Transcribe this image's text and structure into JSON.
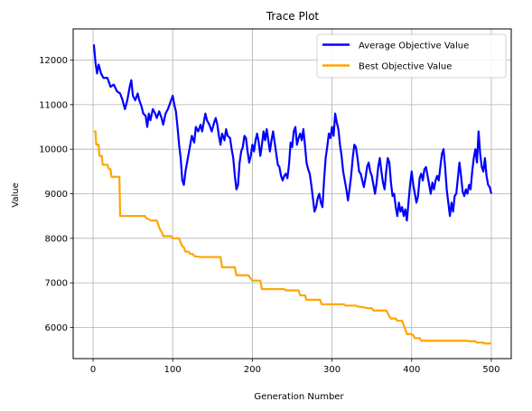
{
  "chart_data": {
    "type": "line",
    "title": "Trace Plot",
    "xlabel": "Generation Number",
    "ylabel": "Value",
    "xlim": [
      -25,
      525
    ],
    "ylim": [
      5300,
      12700
    ],
    "xticks": [
      0,
      100,
      200,
      300,
      400,
      500
    ],
    "yticks": [
      6000,
      7000,
      8000,
      9000,
      10000,
      11000,
      12000
    ],
    "grid": true,
    "legend": "top-right",
    "series": [
      {
        "name": "Average Objective Value",
        "color": "#0000ff",
        "points": [
          [
            1,
            12350
          ],
          [
            3,
            11950
          ],
          [
            5,
            11700
          ],
          [
            7,
            11900
          ],
          [
            10,
            11700
          ],
          [
            13,
            11600
          ],
          [
            18,
            11600
          ],
          [
            22,
            11400
          ],
          [
            26,
            11450
          ],
          [
            30,
            11300
          ],
          [
            34,
            11250
          ],
          [
            37,
            11100
          ],
          [
            40,
            10900
          ],
          [
            43,
            11100
          ],
          [
            46,
            11400
          ],
          [
            48,
            11550
          ],
          [
            50,
            11200
          ],
          [
            53,
            11100
          ],
          [
            56,
            11250
          ],
          [
            58,
            11100
          ],
          [
            61,
            10950
          ],
          [
            63,
            10800
          ],
          [
            66,
            10750
          ],
          [
            68,
            10500
          ],
          [
            70,
            10800
          ],
          [
            72,
            10650
          ],
          [
            75,
            10900
          ],
          [
            78,
            10800
          ],
          [
            80,
            10700
          ],
          [
            83,
            10850
          ],
          [
            86,
            10700
          ],
          [
            88,
            10550
          ],
          [
            91,
            10800
          ],
          [
            94,
            10900
          ],
          [
            97,
            11050
          ],
          [
            100,
            11200
          ],
          [
            102,
            11000
          ],
          [
            104,
            10850
          ],
          [
            106,
            10500
          ],
          [
            108,
            10100
          ],
          [
            110,
            9800
          ],
          [
            112,
            9300
          ],
          [
            114,
            9200
          ],
          [
            116,
            9500
          ],
          [
            118,
            9700
          ],
          [
            120,
            9900
          ],
          [
            122,
            10100
          ],
          [
            124,
            10300
          ],
          [
            127,
            10150
          ],
          [
            129,
            10500
          ],
          [
            132,
            10400
          ],
          [
            135,
            10550
          ],
          [
            137,
            10400
          ],
          [
            139,
            10600
          ],
          [
            141,
            10800
          ],
          [
            143,
            10650
          ],
          [
            146,
            10550
          ],
          [
            149,
            10400
          ],
          [
            152,
            10600
          ],
          [
            154,
            10700
          ],
          [
            156,
            10550
          ],
          [
            158,
            10300
          ],
          [
            160,
            10100
          ],
          [
            162,
            10350
          ],
          [
            165,
            10200
          ],
          [
            167,
            10450
          ],
          [
            169,
            10300
          ],
          [
            172,
            10250
          ],
          [
            174,
            10000
          ],
          [
            176,
            9800
          ],
          [
            178,
            9400
          ],
          [
            180,
            9100
          ],
          [
            182,
            9200
          ],
          [
            184,
            9700
          ],
          [
            186,
            9950
          ],
          [
            188,
            10050
          ],
          [
            190,
            10300
          ],
          [
            192,
            10250
          ],
          [
            194,
            9950
          ],
          [
            196,
            9700
          ],
          [
            198,
            9850
          ],
          [
            200,
            10100
          ],
          [
            202,
            9950
          ],
          [
            204,
            10200
          ],
          [
            206,
            10350
          ],
          [
            208,
            10150
          ],
          [
            210,
            9850
          ],
          [
            212,
            10100
          ],
          [
            214,
            10400
          ],
          [
            216,
            10200
          ],
          [
            218,
            10450
          ],
          [
            220,
            10200
          ],
          [
            222,
            9950
          ],
          [
            224,
            10200
          ],
          [
            226,
            10400
          ],
          [
            228,
            10150
          ],
          [
            230,
            9900
          ],
          [
            232,
            9650
          ],
          [
            234,
            9600
          ],
          [
            236,
            9400
          ],
          [
            238,
            9300
          ],
          [
            240,
            9400
          ],
          [
            242,
            9450
          ],
          [
            244,
            9350
          ],
          [
            246,
            9650
          ],
          [
            248,
            10150
          ],
          [
            250,
            10050
          ],
          [
            252,
            10400
          ],
          [
            254,
            10500
          ],
          [
            256,
            10100
          ],
          [
            258,
            10250
          ],
          [
            260,
            10350
          ],
          [
            262,
            10200
          ],
          [
            264,
            10450
          ],
          [
            266,
            10100
          ],
          [
            268,
            9700
          ],
          [
            270,
            9550
          ],
          [
            272,
            9450
          ],
          [
            274,
            9200
          ],
          [
            276,
            8900
          ],
          [
            278,
            8600
          ],
          [
            280,
            8700
          ],
          [
            282,
            8900
          ],
          [
            284,
            9000
          ],
          [
            286,
            8800
          ],
          [
            288,
            8700
          ],
          [
            290,
            9300
          ],
          [
            292,
            9800
          ],
          [
            294,
            10050
          ],
          [
            296,
            10350
          ],
          [
            298,
            10250
          ],
          [
            300,
            10500
          ],
          [
            302,
            10300
          ],
          [
            304,
            10800
          ],
          [
            306,
            10600
          ],
          [
            308,
            10450
          ],
          [
            310,
            10100
          ],
          [
            312,
            9850
          ],
          [
            314,
            9500
          ],
          [
            316,
            9300
          ],
          [
            318,
            9100
          ],
          [
            320,
            8850
          ],
          [
            322,
            9100
          ],
          [
            324,
            9400
          ],
          [
            326,
            9800
          ],
          [
            328,
            10100
          ],
          [
            330,
            10050
          ],
          [
            332,
            9800
          ],
          [
            334,
            9500
          ],
          [
            336,
            9450
          ],
          [
            338,
            9300
          ],
          [
            340,
            9150
          ],
          [
            342,
            9350
          ],
          [
            344,
            9600
          ],
          [
            346,
            9700
          ],
          [
            348,
            9500
          ],
          [
            350,
            9400
          ],
          [
            352,
            9200
          ],
          [
            354,
            9000
          ],
          [
            356,
            9250
          ],
          [
            358,
            9600
          ],
          [
            360,
            9800
          ],
          [
            362,
            9500
          ],
          [
            364,
            9250
          ],
          [
            366,
            9100
          ],
          [
            368,
            9500
          ],
          [
            370,
            9800
          ],
          [
            372,
            9700
          ],
          [
            374,
            9250
          ],
          [
            376,
            8950
          ],
          [
            378,
            9000
          ],
          [
            380,
            8700
          ],
          [
            382,
            8500
          ],
          [
            384,
            8800
          ],
          [
            386,
            8600
          ],
          [
            388,
            8700
          ],
          [
            390,
            8500
          ],
          [
            392,
            8650
          ],
          [
            394,
            8400
          ],
          [
            396,
            8800
          ],
          [
            398,
            9200
          ],
          [
            400,
            9500
          ],
          [
            402,
            9200
          ],
          [
            404,
            9000
          ],
          [
            406,
            8800
          ],
          [
            408,
            8950
          ],
          [
            410,
            9350
          ],
          [
            412,
            9450
          ],
          [
            414,
            9300
          ],
          [
            416,
            9550
          ],
          [
            418,
            9600
          ],
          [
            420,
            9400
          ],
          [
            422,
            9200
          ],
          [
            424,
            9000
          ],
          [
            426,
            9250
          ],
          [
            428,
            9100
          ],
          [
            430,
            9300
          ],
          [
            432,
            9400
          ],
          [
            434,
            9300
          ],
          [
            436,
            9600
          ],
          [
            438,
            9900
          ],
          [
            440,
            10000
          ],
          [
            442,
            9600
          ],
          [
            444,
            9100
          ],
          [
            446,
            8800
          ],
          [
            448,
            8500
          ],
          [
            450,
            8800
          ],
          [
            452,
            8600
          ],
          [
            454,
            8950
          ],
          [
            456,
            9000
          ],
          [
            458,
            9350
          ],
          [
            460,
            9700
          ],
          [
            462,
            9400
          ],
          [
            464,
            9050
          ],
          [
            466,
            8950
          ],
          [
            468,
            9100
          ],
          [
            470,
            9000
          ],
          [
            472,
            9200
          ],
          [
            474,
            9100
          ],
          [
            476,
            9500
          ],
          [
            478,
            9800
          ],
          [
            480,
            10000
          ],
          [
            482,
            9700
          ],
          [
            484,
            10400
          ],
          [
            486,
            9900
          ],
          [
            488,
            9600
          ],
          [
            490,
            9500
          ],
          [
            492,
            9800
          ],
          [
            494,
            9400
          ],
          [
            496,
            9200
          ],
          [
            498,
            9150
          ],
          [
            500,
            9000
          ]
        ]
      },
      {
        "name": "Best Objective Value",
        "color": "#ffa500",
        "points": [
          [
            1,
            10400
          ],
          [
            3,
            10400
          ],
          [
            4,
            10100
          ],
          [
            7,
            10100
          ],
          [
            8,
            9850
          ],
          [
            11,
            9850
          ],
          [
            12,
            9650
          ],
          [
            18,
            9650
          ],
          [
            20,
            9550
          ],
          [
            22,
            9550
          ],
          [
            23,
            9380
          ],
          [
            33,
            9380
          ],
          [
            34,
            8500
          ],
          [
            65,
            8500
          ],
          [
            67,
            8450
          ],
          [
            70,
            8430
          ],
          [
            72,
            8400
          ],
          [
            80,
            8400
          ],
          [
            82,
            8300
          ],
          [
            84,
            8200
          ],
          [
            86,
            8150
          ],
          [
            88,
            8050
          ],
          [
            98,
            8050
          ],
          [
            100,
            8000
          ],
          [
            108,
            8000
          ],
          [
            110,
            7900
          ],
          [
            112,
            7820
          ],
          [
            114,
            7800
          ],
          [
            116,
            7700
          ],
          [
            120,
            7700
          ],
          [
            122,
            7650
          ],
          [
            125,
            7650
          ],
          [
            127,
            7600
          ],
          [
            135,
            7580
          ],
          [
            160,
            7580
          ],
          [
            162,
            7350
          ],
          [
            178,
            7350
          ],
          [
            180,
            7170
          ],
          [
            195,
            7170
          ],
          [
            197,
            7120
          ],
          [
            200,
            7050
          ],
          [
            210,
            7050
          ],
          [
            212,
            6860
          ],
          [
            240,
            6860
          ],
          [
            242,
            6830
          ],
          [
            258,
            6830
          ],
          [
            260,
            6720
          ],
          [
            266,
            6720
          ],
          [
            268,
            6620
          ],
          [
            285,
            6620
          ],
          [
            287,
            6520
          ],
          [
            315,
            6520
          ],
          [
            317,
            6490
          ],
          [
            330,
            6490
          ],
          [
            332,
            6470
          ],
          [
            340,
            6450
          ],
          [
            345,
            6430
          ],
          [
            350,
            6430
          ],
          [
            352,
            6380
          ],
          [
            368,
            6380
          ],
          [
            370,
            6320
          ],
          [
            372,
            6250
          ],
          [
            374,
            6200
          ],
          [
            380,
            6200
          ],
          [
            382,
            6150
          ],
          [
            388,
            6150
          ],
          [
            390,
            6050
          ],
          [
            392,
            5960
          ],
          [
            394,
            5850
          ],
          [
            400,
            5850
          ],
          [
            402,
            5820
          ],
          [
            404,
            5760
          ],
          [
            410,
            5760
          ],
          [
            412,
            5700
          ],
          [
            470,
            5700
          ],
          [
            472,
            5690
          ],
          [
            480,
            5690
          ],
          [
            482,
            5660
          ],
          [
            490,
            5660
          ],
          [
            491,
            5640
          ],
          [
            500,
            5640
          ]
        ]
      }
    ]
  }
}
